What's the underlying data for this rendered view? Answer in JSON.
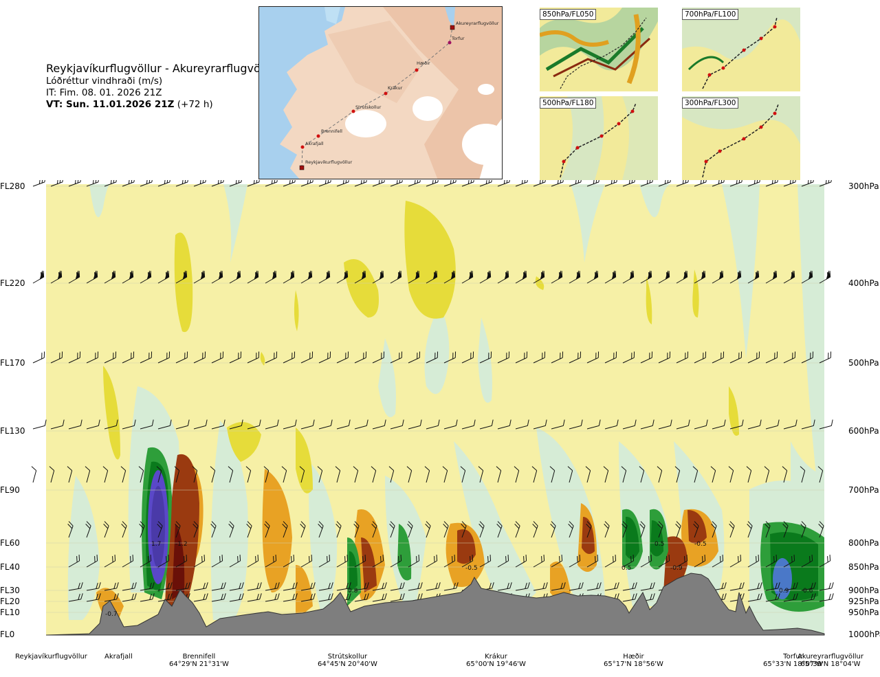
{
  "title": {
    "route": "Reykjavíkurflugvöllur - Akureyrarflugvöllur",
    "parameter": "Lóðréttur vindhraði (m/s)",
    "issue_time": "IT: Fim. 08. 01. 2026 21Z",
    "valid_label": "VT: Sun. 11.01.2026 21Z",
    "valid_offset": "(+72 h)"
  },
  "route_map": {
    "points": [
      "Reykjavíkurflugvöllur",
      "Akrafjall",
      "Brennifell",
      "Strútskollur",
      "Krákur",
      "Hæðir",
      "Torfur",
      "Akureyrarflugvöllur"
    ]
  },
  "thumbnails": [
    {
      "label": "850hPa/FL050"
    },
    {
      "label": "700hPa/FL100"
    },
    {
      "label": "500hPa/FL180"
    },
    {
      "label": "300hPa/FL300"
    }
  ],
  "chart_data": {
    "type": "heatmap",
    "title": "Lóðréttur vindhraði (m/s)",
    "x_axis": "route distance Reykjavíkurflugvöllur → Akureyrarflugvöllur",
    "y_axis_left": "flight level",
    "y_axis_right": "pressure level",
    "levels": [
      {
        "fl": "FL280",
        "hpa": "300hPa"
      },
      {
        "fl": "FL220",
        "hpa": "400hPa"
      },
      {
        "fl": "FL170",
        "hpa": "500hPa"
      },
      {
        "fl": "FL130",
        "hpa": "600hPa"
      },
      {
        "fl": "FL90",
        "hpa": "700hPa"
      },
      {
        "fl": "FL60",
        "hpa": "800hPa"
      },
      {
        "fl": "FL40",
        "hpa": "850hPa"
      },
      {
        "fl": "FL30",
        "hpa": "900hPa"
      },
      {
        "fl": "FL20",
        "hpa": "925hPa"
      },
      {
        "fl": "FL10",
        "hpa": "950hPa"
      },
      {
        "fl": "FL0",
        "hpa": "1000hPa"
      }
    ],
    "waypoints": [
      {
        "name": "Reykjavíkurflugvöllur",
        "coord": ""
      },
      {
        "name": "Akrafjall",
        "coord": ""
      },
      {
        "name": "Brennifell",
        "coord": "64°29'N 21°31'W"
      },
      {
        "name": "Strútskollur",
        "coord": "64°45'N 20°40'W"
      },
      {
        "name": "Krákur",
        "coord": "65°00'N 19°46'W"
      },
      {
        "name": "Hæðir",
        "coord": "65°17'N 18°56'W"
      },
      {
        "name": "Torfur",
        "coord": "65°33'N 18°07'W"
      },
      {
        "name": "Akureyrarflugvöllur",
        "coord": "65°39'N 18°04'W"
      }
    ],
    "extrema_labels": [
      "-0.7",
      "1.7",
      "-1.2",
      "0.8",
      "-0.5",
      "0.5",
      "-0.5",
      "0.5",
      "-0.9",
      "0.9",
      "0.6"
    ]
  },
  "colors": {
    "background_field": "#f6f0a6",
    "light_green": "#d6ecd6",
    "green": "#2e9e3a",
    "dark_green": "#0a7a1c",
    "blue": "#4a78c8",
    "purple": "#5a48c8",
    "yellow": "#e8dc46",
    "orange": "#e0a020",
    "brown": "#9a3a10",
    "dark_red": "#7a1a10",
    "terrain": "#808080"
  }
}
